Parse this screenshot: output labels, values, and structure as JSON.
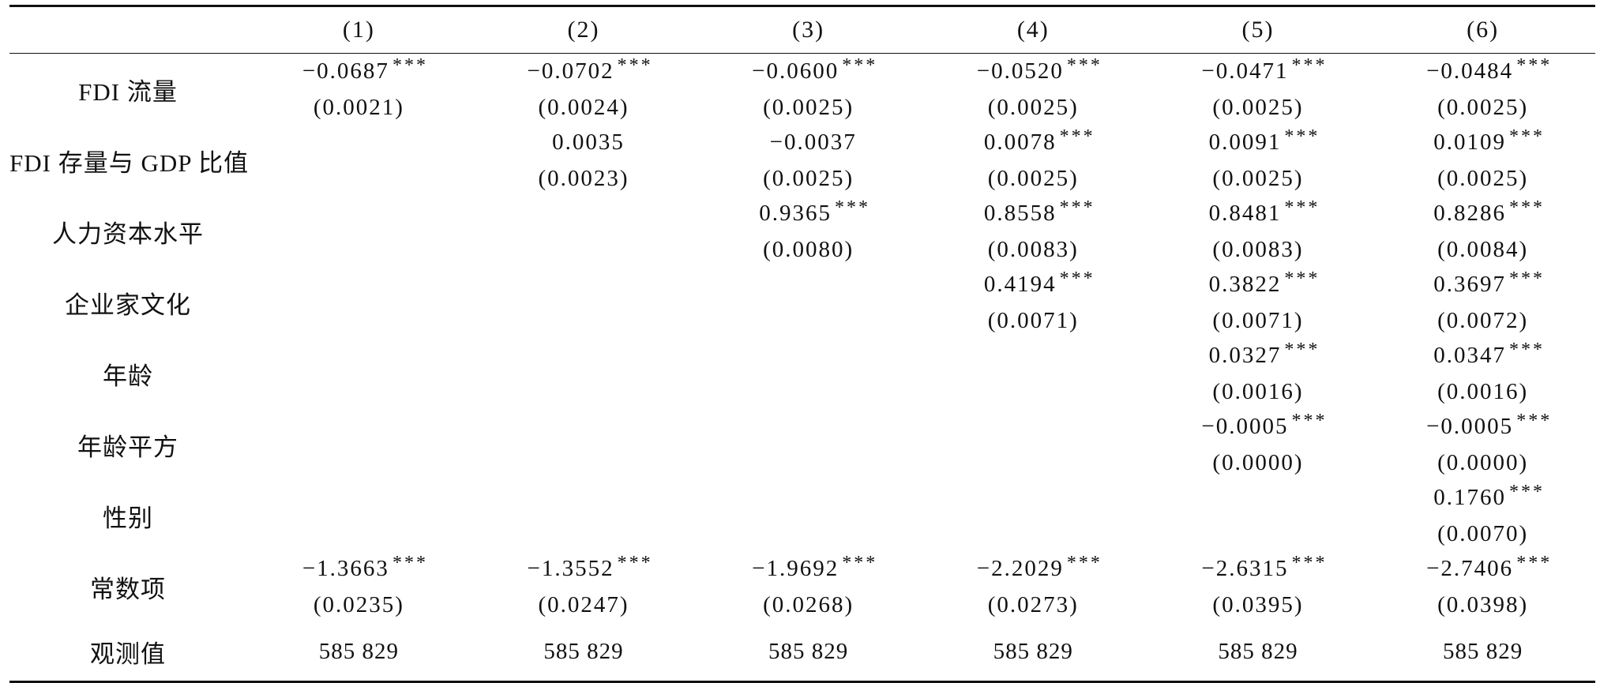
{
  "table": {
    "columns": [
      "(1)",
      "(2)",
      "(3)",
      "(4)",
      "(5)",
      "(6)"
    ],
    "rows": [
      {
        "label": "FDI 流量",
        "cells": [
          {
            "coef": "−0.0687",
            "stars": "***",
            "se": "(0.0021)"
          },
          {
            "coef": "−0.0702",
            "stars": "***",
            "se": "(0.0024)"
          },
          {
            "coef": "−0.0600",
            "stars": "***",
            "se": "(0.0025)"
          },
          {
            "coef": "−0.0520",
            "stars": "***",
            "se": "(0.0025)"
          },
          {
            "coef": "−0.0471",
            "stars": "***",
            "se": "(0.0025)"
          },
          {
            "coef": "−0.0484",
            "stars": "***",
            "se": "(0.0025)"
          }
        ]
      },
      {
        "label": "FDI 存量与 GDP 比值",
        "cells": [
          {
            "coef": "",
            "stars": "",
            "se": ""
          },
          {
            "coef": "0.0035",
            "stars": "",
            "se": "(0.0023)"
          },
          {
            "coef": "−0.0037",
            "stars": "",
            "se": "(0.0025)"
          },
          {
            "coef": "0.0078",
            "stars": "***",
            "se": "(0.0025)"
          },
          {
            "coef": "0.0091",
            "stars": "***",
            "se": "(0.0025)"
          },
          {
            "coef": "0.0109",
            "stars": "***",
            "se": "(0.0025)"
          }
        ]
      },
      {
        "label": "人力资本水平",
        "cells": [
          {
            "coef": "",
            "stars": "",
            "se": ""
          },
          {
            "coef": "",
            "stars": "",
            "se": ""
          },
          {
            "coef": "0.9365",
            "stars": "***",
            "se": "(0.0080)"
          },
          {
            "coef": "0.8558",
            "stars": "***",
            "se": "(0.0083)"
          },
          {
            "coef": "0.8481",
            "stars": "***",
            "se": "(0.0083)"
          },
          {
            "coef": "0.8286",
            "stars": "***",
            "se": "(0.0084)"
          }
        ]
      },
      {
        "label": "企业家文化",
        "cells": [
          {
            "coef": "",
            "stars": "",
            "se": ""
          },
          {
            "coef": "",
            "stars": "",
            "se": ""
          },
          {
            "coef": "",
            "stars": "",
            "se": ""
          },
          {
            "coef": "0.4194",
            "stars": "***",
            "se": "(0.0071)"
          },
          {
            "coef": "0.3822",
            "stars": "***",
            "se": "(0.0071)"
          },
          {
            "coef": "0.3697",
            "stars": "***",
            "se": "(0.0072)"
          }
        ]
      },
      {
        "label": "年龄",
        "cells": [
          {
            "coef": "",
            "stars": "",
            "se": ""
          },
          {
            "coef": "",
            "stars": "",
            "se": ""
          },
          {
            "coef": "",
            "stars": "",
            "se": ""
          },
          {
            "coef": "",
            "stars": "",
            "se": ""
          },
          {
            "coef": "0.0327",
            "stars": "***",
            "se": "(0.0016)"
          },
          {
            "coef": "0.0347",
            "stars": "***",
            "se": "(0.0016)"
          }
        ]
      },
      {
        "label": "年龄平方",
        "cells": [
          {
            "coef": "",
            "stars": "",
            "se": ""
          },
          {
            "coef": "",
            "stars": "",
            "se": ""
          },
          {
            "coef": "",
            "stars": "",
            "se": ""
          },
          {
            "coef": "",
            "stars": "",
            "se": ""
          },
          {
            "coef": "−0.0005",
            "stars": "***",
            "se": "(0.0000)"
          },
          {
            "coef": "−0.0005",
            "stars": "***",
            "se": "(0.0000)"
          }
        ]
      },
      {
        "label": "性别",
        "cells": [
          {
            "coef": "",
            "stars": "",
            "se": ""
          },
          {
            "coef": "",
            "stars": "",
            "se": ""
          },
          {
            "coef": "",
            "stars": "",
            "se": ""
          },
          {
            "coef": "",
            "stars": "",
            "se": ""
          },
          {
            "coef": "",
            "stars": "",
            "se": ""
          },
          {
            "coef": "0.1760",
            "stars": "***",
            "se": "(0.0070)"
          }
        ]
      },
      {
        "label": "常数项",
        "cells": [
          {
            "coef": "−1.3663",
            "stars": "***",
            "se": "(0.0235)"
          },
          {
            "coef": "−1.3552",
            "stars": "***",
            "se": "(0.0247)"
          },
          {
            "coef": "−1.9692",
            "stars": "***",
            "se": "(0.0268)"
          },
          {
            "coef": "−2.2029",
            "stars": "***",
            "se": "(0.0273)"
          },
          {
            "coef": "−2.6315",
            "stars": "***",
            "se": "(0.0395)"
          },
          {
            "coef": "−2.7406",
            "stars": "***",
            "se": "(0.0398)"
          }
        ]
      }
    ],
    "observations": {
      "label": "观测值",
      "values": [
        "585 829",
        "585 829",
        "585 829",
        "585 829",
        "585 829",
        "585 829"
      ]
    }
  }
}
